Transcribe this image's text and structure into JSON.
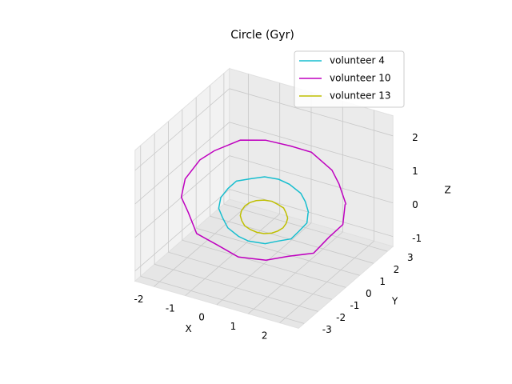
{
  "chart_data": {
    "type": "line3d",
    "title": "Circle (Gyr)",
    "xlabel": "X",
    "ylabel": "Y",
    "zlabel": "Z",
    "xlim": [
      -2.6,
      2.6
    ],
    "ylim": [
      -3.4,
      3.4
    ],
    "zlim": [
      -1.3,
      2.6
    ],
    "xticks": [
      -2,
      -1,
      0,
      1,
      2
    ],
    "yticks": [
      -3,
      -2,
      -1,
      0,
      1,
      2,
      3
    ],
    "zticks": [
      -1,
      0,
      1,
      2
    ],
    "grid": true,
    "legend": "upper right",
    "series": [
      {
        "name": "volunteer 4",
        "color": "#17becf",
        "x": [
          1.13,
          1.05,
          0.95,
          0.63,
          0.38,
          0.02,
          -0.33,
          -0.7,
          -0.9,
          -1.1,
          -1.15,
          -1.05,
          -0.93,
          -0.64,
          -0.4,
          0.03,
          0.32,
          0.7,
          0.88,
          1.1,
          1.12
        ],
        "y": [
          0.65,
          0.6,
          0.5,
          0.4,
          0.2,
          0.0,
          -0.2,
          -0.4,
          -0.55,
          -0.62,
          -0.66,
          -0.6,
          -0.5,
          -0.38,
          -0.2,
          0.02,
          0.22,
          0.37,
          0.52,
          0.6,
          0.64
        ],
        "z": [
          0.3,
          0.62,
          0.88,
          1.1,
          1.25,
          1.3,
          1.22,
          1.12,
          0.9,
          0.6,
          0.28,
          0.0,
          -0.3,
          -0.52,
          -0.66,
          -0.7,
          -0.62,
          -0.5,
          -0.28,
          0.0,
          0.3
        ]
      },
      {
        "name": "volunteer 10",
        "color": "#bf00bf",
        "x": [
          2.08,
          1.9,
          1.72,
          1.2,
          0.68,
          0.05,
          -0.6,
          -1.25,
          -1.62,
          -2.0,
          -2.1,
          -1.92,
          -1.7,
          -1.2,
          -0.66,
          0.04,
          0.6,
          1.26,
          1.65,
          2.0,
          2.05
        ],
        "y": [
          1.2,
          1.1,
          1.0,
          0.7,
          0.4,
          0.0,
          -0.35,
          -0.75,
          -0.95,
          -1.15,
          -1.2,
          -1.1,
          -1.0,
          -0.7,
          -0.35,
          0.05,
          0.38,
          0.72,
          0.95,
          1.15,
          1.2
        ],
        "z": [
          0.6,
          1.2,
          1.6,
          2.1,
          2.25,
          2.4,
          2.35,
          2.0,
          1.7,
          1.1,
          0.55,
          0.1,
          -0.5,
          -0.8,
          -1.15,
          -1.2,
          -1.05,
          -0.9,
          -0.4,
          0.0,
          0.6
        ]
      },
      {
        "name": "volunteer 13",
        "color": "#bfbf00",
        "x": [
          0.6,
          0.55,
          0.5,
          0.33,
          0.2,
          0.0,
          -0.2,
          -0.36,
          -0.48,
          -0.57,
          -0.6,
          -0.56,
          -0.49,
          -0.35,
          -0.18,
          0.0,
          0.2,
          0.35,
          0.48,
          0.56,
          0.6
        ],
        "y": [
          0.35,
          0.33,
          0.28,
          0.2,
          0.11,
          0.0,
          -0.11,
          -0.2,
          -0.28,
          -0.33,
          -0.35,
          -0.33,
          -0.28,
          -0.2,
          -0.11,
          0.0,
          0.11,
          0.2,
          0.28,
          0.33,
          0.35
        ],
        "z": [
          0.1,
          0.26,
          0.4,
          0.5,
          0.58,
          0.6,
          0.57,
          0.5,
          0.4,
          0.25,
          0.1,
          -0.05,
          -0.2,
          -0.3,
          -0.37,
          -0.4,
          -0.37,
          -0.3,
          -0.2,
          -0.06,
          0.1
        ]
      }
    ]
  }
}
